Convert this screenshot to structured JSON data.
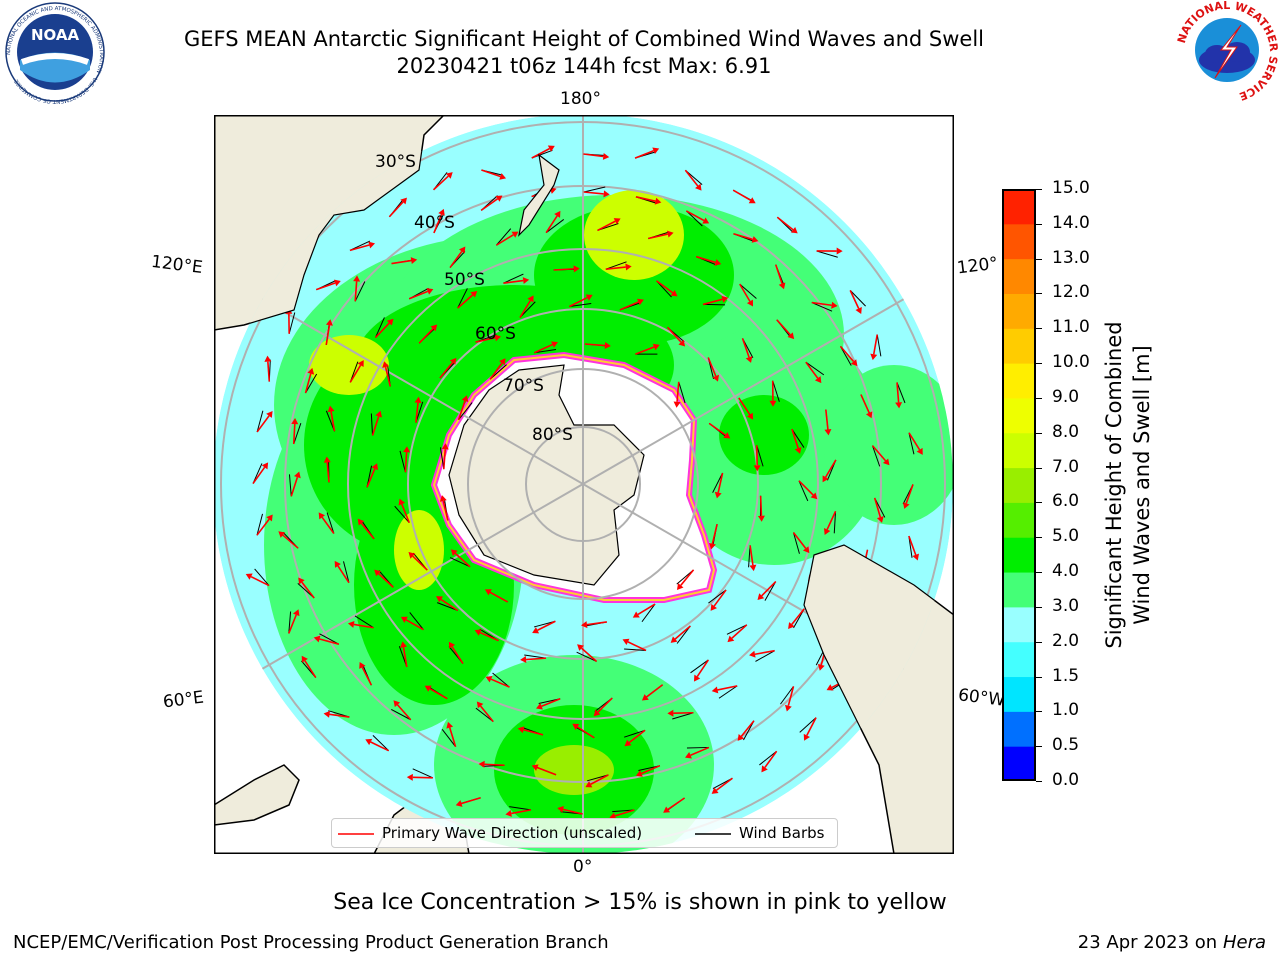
{
  "header": {
    "title_line1": "GEFS MEAN Antarctic Significant Height of Combined Wind Waves and Swell",
    "title_line2": "20230421 t06z 144h fcst   Max: 6.91"
  },
  "logos": {
    "left": "NOAA",
    "left_ring": "NATIONAL OCEANIC AND ATMOSPHERIC ADMINISTRATION · U.S. DEPARTMENT OF COMMERCE",
    "right_ring": "NATIONAL WEATHER SERVICE"
  },
  "map": {
    "lon_labels": {
      "top": "180°",
      "bottom": "0°",
      "left_upper": "120°E",
      "left_lower": "60°E",
      "right_upper": "120°",
      "right_lower": "60°W"
    },
    "lat_labels": [
      "30°S",
      "40°S",
      "50°S",
      "60°S",
      "70°S",
      "80°S"
    ]
  },
  "legend": {
    "wave_label": "Primary Wave Direction (unscaled)",
    "wind_label": "Wind Barbs",
    "wave_color": "#ff0000",
    "wind_color": "#000000"
  },
  "colorbar": {
    "title_line1": "Significant Height of Combined",
    "title_line2": "Wind Waves and Swell [m]",
    "tick_labels": [
      "15.0",
      "14.0",
      "13.0",
      "12.0",
      "11.0",
      "10.0",
      "9.0",
      "8.0",
      "7.0",
      "6.0",
      "5.0",
      "4.0",
      "3.0",
      "2.0",
      "1.5",
      "1.0",
      "0.5",
      "0.0"
    ],
    "colors": [
      "#0000ff",
      "#0070ff",
      "#00e5ff",
      "#44ffff",
      "#99ffff",
      "#44ff77",
      "#00ee00",
      "#55ee00",
      "#99ee00",
      "#ccff00",
      "#eeff00",
      "#ffee00",
      "#ffcc00",
      "#ffaa00",
      "#ff8800",
      "#ff5500",
      "#ff2200"
    ]
  },
  "note": "Sea Ice Concentration > 15% is shown in pink to yellow",
  "footer": {
    "left": "NCEP/EMC/Verification Post Processing Product Generation Branch",
    "right_prefix": "23 Apr 2023 on ",
    "right_italic": "Hera"
  }
}
